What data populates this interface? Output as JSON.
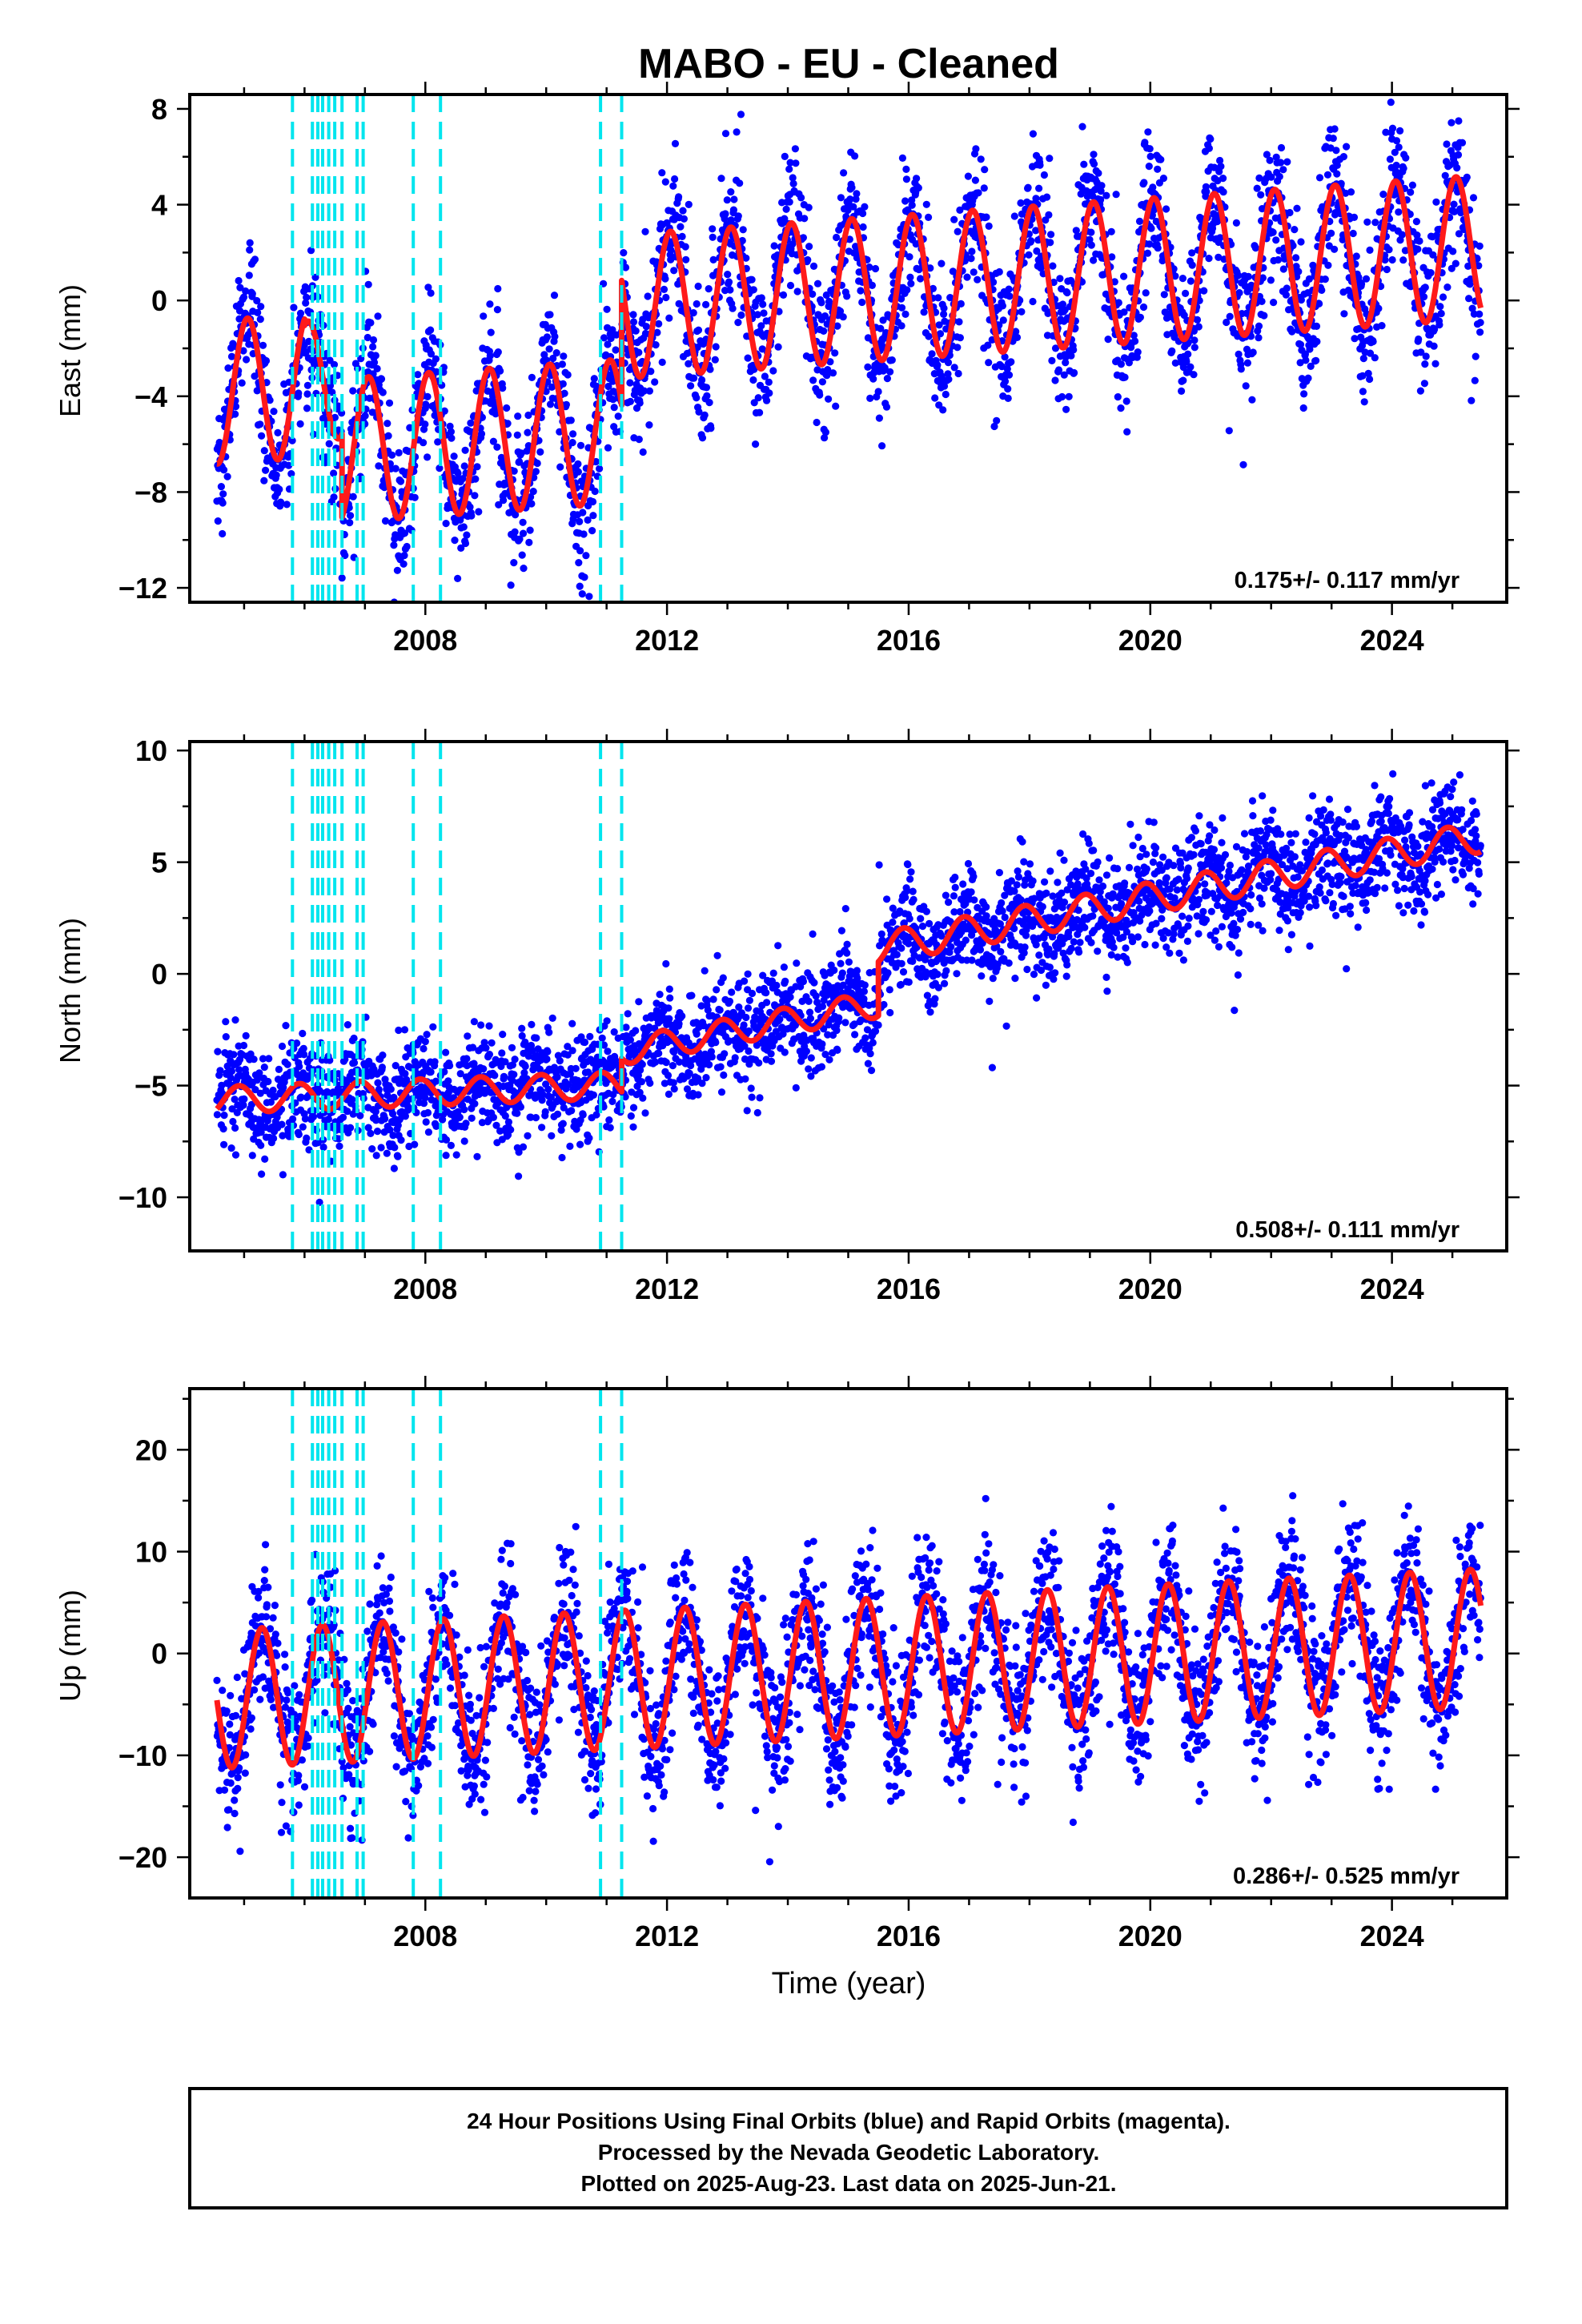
{
  "title": "MABO  - EU - Cleaned",
  "xlabel": "Time (year)",
  "colors": {
    "points": "#0000ff",
    "model": "#ff1a1a",
    "steps": "#00e5ee"
  },
  "footer": {
    "line1": "24 Hour Positions Using Final Orbits (blue) and Rapid Orbits (magenta).",
    "line2": "Processed by the Nevada Geodetic Laboratory.",
    "line3": "Plotted on 2025-Aug-23. Last data on 2025-Jun-21."
  },
  "chart_data": [
    {
      "type": "scatter",
      "component": "east",
      "ylabel": "East (mm)",
      "rate": "0.175+/- 0.117 mm/yr",
      "xlim": [
        2004.1,
        2025.9
      ],
      "ylim": [
        -12.6,
        8.6
      ],
      "xticks": [
        2008,
        2012,
        2016,
        2020,
        2024
      ],
      "yticks": [
        -12,
        -8,
        -4,
        0,
        4,
        8
      ],
      "step_epochs": [
        2005.8,
        2006.13,
        2006.22,
        2006.3,
        2006.4,
        2006.5,
        2006.62,
        2006.87,
        2006.97,
        2007.8,
        2008.25,
        2010.9,
        2011.25
      ],
      "data_range": [
        2004.55,
        2025.47
      ],
      "segments": [
        {
          "x": [
            2004.55,
            2006.0
          ],
          "offset": -2.0,
          "rate": 0.175,
          "amp": 3.0,
          "phase": 1.2
        },
        {
          "x": [
            2006.0,
            2006.62
          ],
          "offset": -1.8,
          "rate": 0.175,
          "amp": 2.5,
          "phase": 1.2
        },
        {
          "x": [
            2006.62,
            2011.25
          ],
          "offset": -4.8,
          "rate": 0.175,
          "amp": 3.0,
          "phase": 1.2
        },
        {
          "x": [
            2011.25,
            2025.47
          ],
          "offset": 0.4,
          "rate": 0.175,
          "amp": 3.0,
          "phase": 1.2
        }
      ],
      "scatter_sd": 1.5
    },
    {
      "type": "scatter",
      "component": "north",
      "ylabel": "North (mm)",
      "rate": "0.508+/- 0.111 mm/yr",
      "xlim": [
        2004.1,
        2025.9
      ],
      "ylim": [
        -12.4,
        10.4
      ],
      "xticks": [
        2008,
        2012,
        2016,
        2020,
        2024
      ],
      "yticks": [
        -10,
        -5,
        0,
        5,
        10
      ],
      "step_epochs": [
        2005.8,
        2006.13,
        2006.22,
        2006.3,
        2006.4,
        2006.5,
        2006.62,
        2006.87,
        2006.97,
        2007.8,
        2008.25,
        2010.9,
        2011.25
      ],
      "data_range": [
        2004.55,
        2025.47
      ],
      "segments": [
        {
          "x": [
            2004.55,
            2011.25
          ],
          "offset": -4.6,
          "rate": 0.1,
          "amp": 0.6,
          "phase": 2.1
        },
        {
          "x": [
            2011.25,
            2015.5
          ],
          "offset": -1.6,
          "rate": 0.5,
          "amp": 0.6,
          "phase": 2.1
        },
        {
          "x": [
            2015.5,
            2025.47
          ],
          "offset": 0.9,
          "rate": 0.5,
          "amp": 0.7,
          "phase": 2.1
        }
      ],
      "scatter_sd": 1.2
    },
    {
      "type": "scatter",
      "component": "up",
      "ylabel": "Up (mm)",
      "rate": "0.286+/- 0.525 mm/yr",
      "xlim": [
        2004.1,
        2025.9
      ],
      "ylim": [
        -24,
        26
      ],
      "xticks": [
        2008,
        2012,
        2016,
        2020,
        2024
      ],
      "yticks": [
        -20,
        -10,
        0,
        10,
        20
      ],
      "step_epochs": [
        2005.8,
        2006.13,
        2006.22,
        2006.3,
        2006.4,
        2006.5,
        2006.62,
        2006.87,
        2006.97,
        2007.8,
        2008.25,
        2010.9,
        2011.25
      ],
      "data_range": [
        2004.55,
        2025.47
      ],
      "segments": [
        {
          "x": [
            2004.55,
            2025.47
          ],
          "offset": -1.5,
          "rate": 0.286,
          "amp": 6.8,
          "phase": -0.3
        }
      ],
      "scatter_sd": 3.6
    }
  ]
}
